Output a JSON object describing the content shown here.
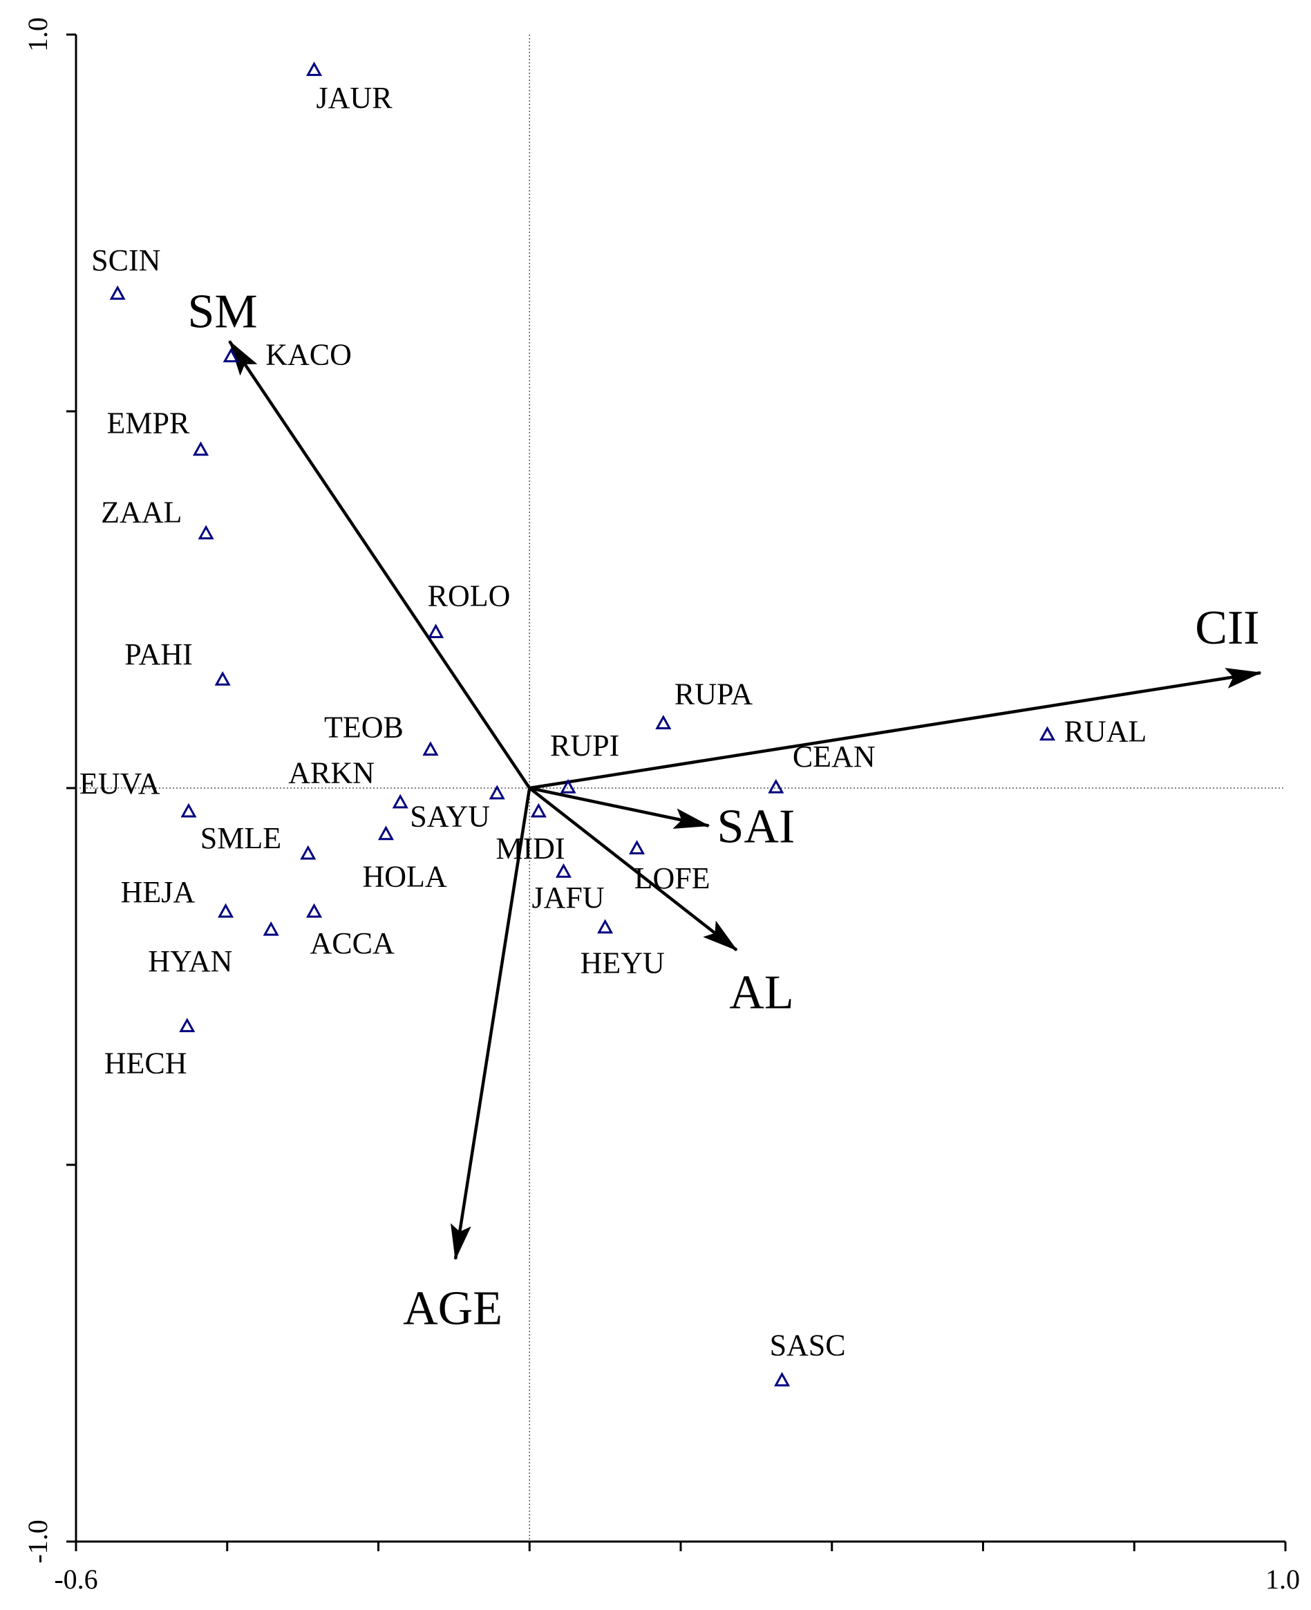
{
  "chart_data": {
    "type": "scatter",
    "title": "",
    "xlabel": "",
    "ylabel": "",
    "xlim": [
      -0.6,
      1.0
    ],
    "ylim": [
      -1.0,
      1.0
    ],
    "x_tick_labels": [
      "-0.6",
      "1.0"
    ],
    "y_tick_labels": [
      "1.0",
      "-1.0"
    ],
    "x_tick_values": [
      -0.6,
      -0.4,
      -0.2,
      0.0,
      0.2,
      0.4,
      0.6,
      0.8,
      1.0
    ],
    "y_tick_values": [
      1.0,
      0.5,
      0.0,
      -0.5,
      -1.0
    ],
    "grid": false,
    "zero_lines": true,
    "marker": "open-triangle",
    "marker_color": "#000080",
    "species": [
      {
        "name": "JAUR",
        "x": -0.285,
        "y": 0.953
      },
      {
        "name": "SCIN",
        "x": -0.545,
        "y": 0.656
      },
      {
        "name": "KACO",
        "x": -0.395,
        "y": 0.573
      },
      {
        "name": "EMPR",
        "x": -0.435,
        "y": 0.449
      },
      {
        "name": "ZAAL",
        "x": -0.428,
        "y": 0.338
      },
      {
        "name": "ROLO",
        "x": -0.124,
        "y": 0.207
      },
      {
        "name": "PAHI",
        "x": -0.406,
        "y": 0.144
      },
      {
        "name": "RUPA",
        "x": 0.177,
        "y": 0.086
      },
      {
        "name": "RUAL",
        "x": 0.685,
        "y": 0.071
      },
      {
        "name": "TEOB",
        "x": -0.131,
        "y": 0.051
      },
      {
        "name": "RUPI",
        "x": 0.051,
        "y": 0.001
      },
      {
        "name": "CEAN",
        "x": 0.326,
        "y": 0.001
      },
      {
        "name": "EUVA",
        "x": -0.451,
        "y": -0.031
      },
      {
        "name": "ARKN",
        "x": -0.171,
        "y": -0.019
      },
      {
        "name": "SAYU",
        "x": -0.043,
        "y": -0.007
      },
      {
        "name": "MIDI",
        "x": 0.012,
        "y": -0.031
      },
      {
        "name": "HOLA",
        "x": -0.19,
        "y": -0.061
      },
      {
        "name": "SMLE",
        "x": -0.293,
        "y": -0.087
      },
      {
        "name": "LOFE",
        "x": 0.142,
        "y": -0.08
      },
      {
        "name": "JAFU",
        "x": 0.045,
        "y": -0.111
      },
      {
        "name": "HEJA",
        "x": -0.402,
        "y": -0.164
      },
      {
        "name": "ACCA",
        "x": -0.285,
        "y": -0.164
      },
      {
        "name": "HYAN",
        "x": -0.342,
        "y": -0.188
      },
      {
        "name": "HEYU",
        "x": 0.1,
        "y": -0.185
      },
      {
        "name": "HECH",
        "x": -0.453,
        "y": -0.316
      },
      {
        "name": "SASC",
        "x": 0.334,
        "y": -0.786
      }
    ],
    "vectors": [
      {
        "name": "SM",
        "x": -0.397,
        "y": 0.593
      },
      {
        "name": "CII",
        "x": 0.967,
        "y": 0.153
      },
      {
        "name": "SAI",
        "x": 0.237,
        "y": -0.05
      },
      {
        "name": "AL",
        "x": 0.274,
        "y": -0.215
      },
      {
        "name": "AGE",
        "x": -0.098,
        "y": -0.625
      }
    ]
  }
}
